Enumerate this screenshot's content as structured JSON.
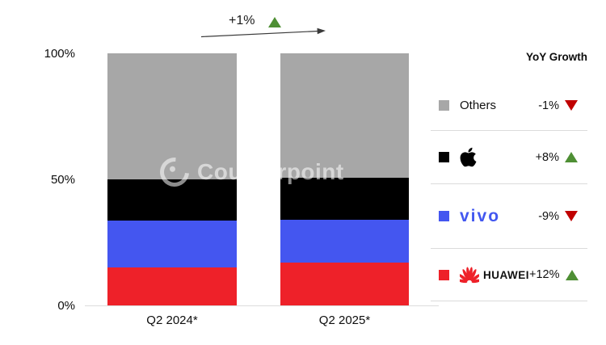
{
  "annotation": {
    "growth_label": "+1%",
    "direction": "up"
  },
  "y_axis": {
    "ticks": [
      "100%",
      "50%",
      "0%"
    ]
  },
  "x_axis": {
    "categories": [
      "Q2 2024*",
      "Q2 2025*"
    ]
  },
  "watermark": {
    "text": "Counterpoint"
  },
  "legend": {
    "header": "YoY Growth",
    "rows": [
      {
        "name": "Others",
        "label": "Others",
        "swatch": "#a7a7a7",
        "growth": "-1%",
        "direction": "down"
      },
      {
        "name": "Apple",
        "label": "Apple",
        "swatch": "#000000",
        "growth": "+8%",
        "direction": "up"
      },
      {
        "name": "vivo",
        "label": "vivo",
        "swatch": "#4456f0",
        "growth": "-9%",
        "direction": "down"
      },
      {
        "name": "Huawei",
        "label": "HUAWEI",
        "swatch": "#ee2129",
        "growth": "+12%",
        "direction": "up"
      }
    ]
  },
  "colors": {
    "up": "#4e8f34",
    "down": "#c00000",
    "gray": "#a7a7a7",
    "black": "#000000",
    "blue": "#4456f0",
    "red": "#ee2129"
  },
  "chart_data": {
    "type": "bar",
    "stacked": true,
    "unit": "percent share",
    "categories": [
      "Q2 2024*",
      "Q2 2025*"
    ],
    "series": [
      {
        "name": "Huawei",
        "color": "#ee2129",
        "values": [
          15,
          17
        ]
      },
      {
        "name": "vivo",
        "color": "#4456f0",
        "values": [
          18.5,
          17
        ]
      },
      {
        "name": "Apple",
        "color": "#000000",
        "values": [
          16.5,
          16.5
        ]
      },
      {
        "name": "Others",
        "color": "#a7a7a7",
        "values": [
          50,
          49.5
        ]
      }
    ],
    "ylim": [
      0,
      100
    ],
    "y_ticks": [
      "0%",
      "50%",
      "100%"
    ],
    "total_market_growth_annotation": "+1%",
    "yoy_growth": {
      "Others": "-1%",
      "Apple": "+8%",
      "vivo": "-9%",
      "Huawei": "+12%"
    },
    "legend_position": "right",
    "grid": false
  }
}
